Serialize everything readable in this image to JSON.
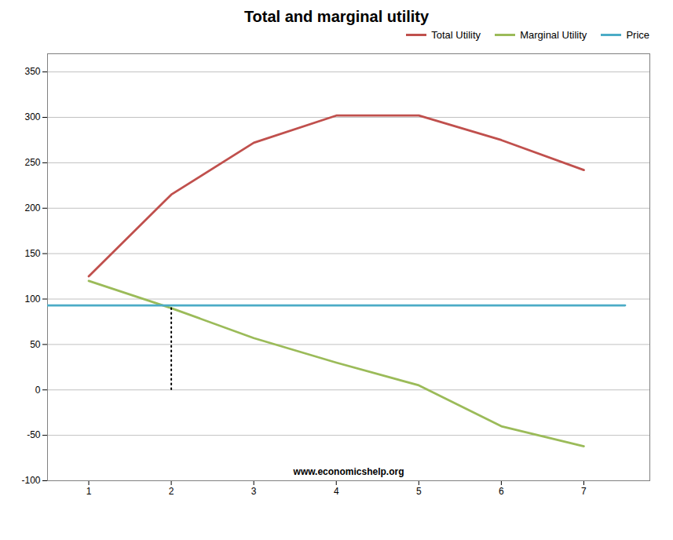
{
  "chart_data": {
    "type": "line",
    "title": "Total and marginal utility",
    "series": [
      {
        "name": "Total Utility",
        "color": "#c0504d",
        "x": [
          1,
          2,
          3,
          4,
          5,
          6,
          7
        ],
        "values": [
          125,
          215,
          272,
          302,
          302,
          275,
          242
        ]
      },
      {
        "name": "Marginal Utility",
        "color": "#9bbb59",
        "x": [
          1,
          2,
          3,
          4,
          5,
          6,
          7
        ],
        "values": [
          120,
          90,
          57,
          30,
          5,
          -40,
          -62
        ]
      },
      {
        "name": "Price",
        "color": "#4bacc6",
        "x": [
          0.5,
          7.5
        ],
        "values": [
          93,
          93
        ]
      },
      {
        "color": "#000000",
        "line_style": "dotted",
        "x": [
          2,
          2
        ],
        "values": [
          90,
          0
        ]
      }
    ],
    "xlim": [
      0.5,
      7.8
    ],
    "ylim": [
      -100,
      370
    ],
    "xticks": [
      1,
      2,
      3,
      4,
      5,
      6,
      7
    ],
    "yticks": [
      -100,
      -50,
      0,
      50,
      100,
      150,
      200,
      250,
      300,
      350
    ],
    "grid": "y",
    "legend": "upper right",
    "annotations": [
      "www.economicshelp.org"
    ]
  }
}
